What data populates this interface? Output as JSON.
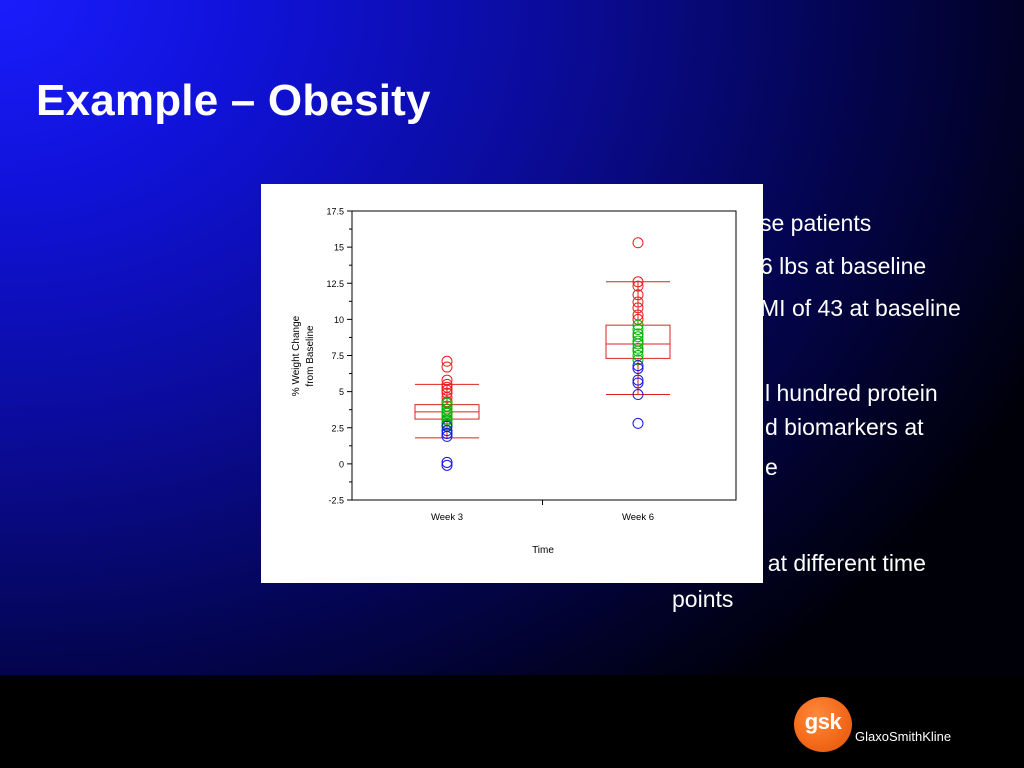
{
  "slide": {
    "title": "Example – Obesity",
    "bullets": [
      "se patients",
      "6 lbs at baseline",
      "MI of 43 at baseline",
      "l hundred protein",
      "d biomarkers at",
      "e",
      "  at different time",
      "points"
    ]
  },
  "footer": {
    "logo_text": "gsk",
    "company_name": "GlaxoSmithKline"
  },
  "colors": {
    "box": "#dd2222",
    "red_points": "#ee1c1c",
    "green_points": "#00b400",
    "blue_points": "#1616e0"
  },
  "chart_data": {
    "type": "scatter",
    "title": "",
    "xlabel": "Time",
    "ylabel": "% Weight Change from Baseline",
    "ylabel_lines": [
      "% Weight Change",
      "from Baseline"
    ],
    "categories": [
      "Week 3",
      "Week 6"
    ],
    "ylim": [
      -2.5,
      17.5
    ],
    "yticks": [
      -2.5,
      0,
      2.5,
      5,
      7.5,
      10,
      12.5,
      15,
      17.5
    ],
    "ytick_labels": [
      "-2.5",
      "0",
      "2.5",
      "5",
      "7.5",
      "10",
      "12.5",
      "15",
      "17.5"
    ],
    "boxes": [
      {
        "category": "Week 3",
        "whisker_low": 1.8,
        "q1": 3.1,
        "median": 3.6,
        "q3": 4.1,
        "whisker_high": 5.5
      },
      {
        "category": "Week 6",
        "whisker_low": 4.8,
        "q1": 7.3,
        "median": 8.3,
        "q3": 9.6,
        "whisker_high": 12.6
      }
    ],
    "series": [
      {
        "color_group": "red",
        "category": "Week 3",
        "values": [
          7.1,
          6.7,
          5.8,
          5.5,
          5.3,
          5.1,
          4.9,
          4.6,
          4.3
        ]
      },
      {
        "color_group": "green",
        "category": "Week 3",
        "values": [
          4.2,
          4.0,
          3.8,
          3.6,
          3.5,
          3.3,
          3.1,
          3.0,
          2.8,
          2.7
        ]
      },
      {
        "color_group": "blue",
        "category": "Week 3",
        "values": [
          2.6,
          2.3,
          2.1,
          1.9,
          0.1,
          -0.1
        ]
      },
      {
        "color_group": "red",
        "category": "Week 6",
        "values": [
          15.3,
          12.6,
          12.3,
          11.7,
          11.2,
          10.8,
          10.3,
          10.0
        ]
      },
      {
        "color_group": "green",
        "category": "Week 6",
        "values": [
          9.6,
          9.3,
          9.0,
          8.8,
          8.5,
          8.3,
          8.0,
          7.8,
          7.5,
          7.2
        ]
      },
      {
        "color_group": "blue",
        "category": "Week 6",
        "values": [
          6.8,
          6.6,
          5.8,
          5.6,
          4.8,
          2.8
        ]
      }
    ]
  }
}
